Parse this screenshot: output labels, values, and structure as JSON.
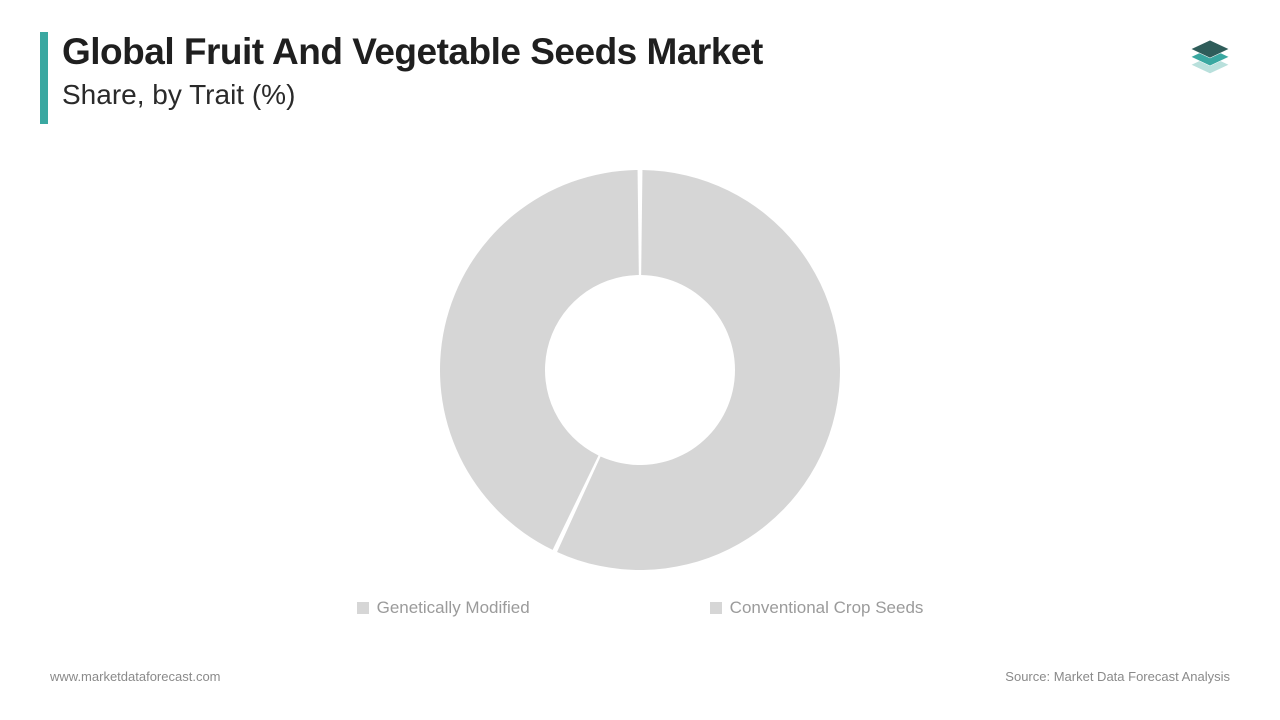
{
  "header": {
    "title": "Global Fruit And Vegetable Seeds Market",
    "subtitle": "Share, by Trait (%)",
    "accent_color": "#3aa8a1"
  },
  "logo": {
    "color_top": "#2f5d5a",
    "color_mid": "#3aa8a1",
    "color_bot": "#b9e0dc"
  },
  "chart": {
    "type": "donut",
    "outer_radius": 200,
    "inner_radius": 95,
    "gap_deg": 1.4,
    "start_angle_deg": -90,
    "background": "#ffffff",
    "slices": [
      {
        "label": "Genetically Modified",
        "value": 57,
        "color": "#d6d6d6"
      },
      {
        "label": "Conventional Crop Seeds",
        "value": 43,
        "color": "#d6d6d6"
      }
    ],
    "legend_marker_color": "#d6d6d6",
    "legend_text_color": "#9b9b9b",
    "legend_fontsize": 17
  },
  "footer": {
    "left": "www.marketdataforecast.com",
    "right": "Source: Market Data Forecast Analysis",
    "color": "#8a8a8a",
    "fontsize": 13
  }
}
